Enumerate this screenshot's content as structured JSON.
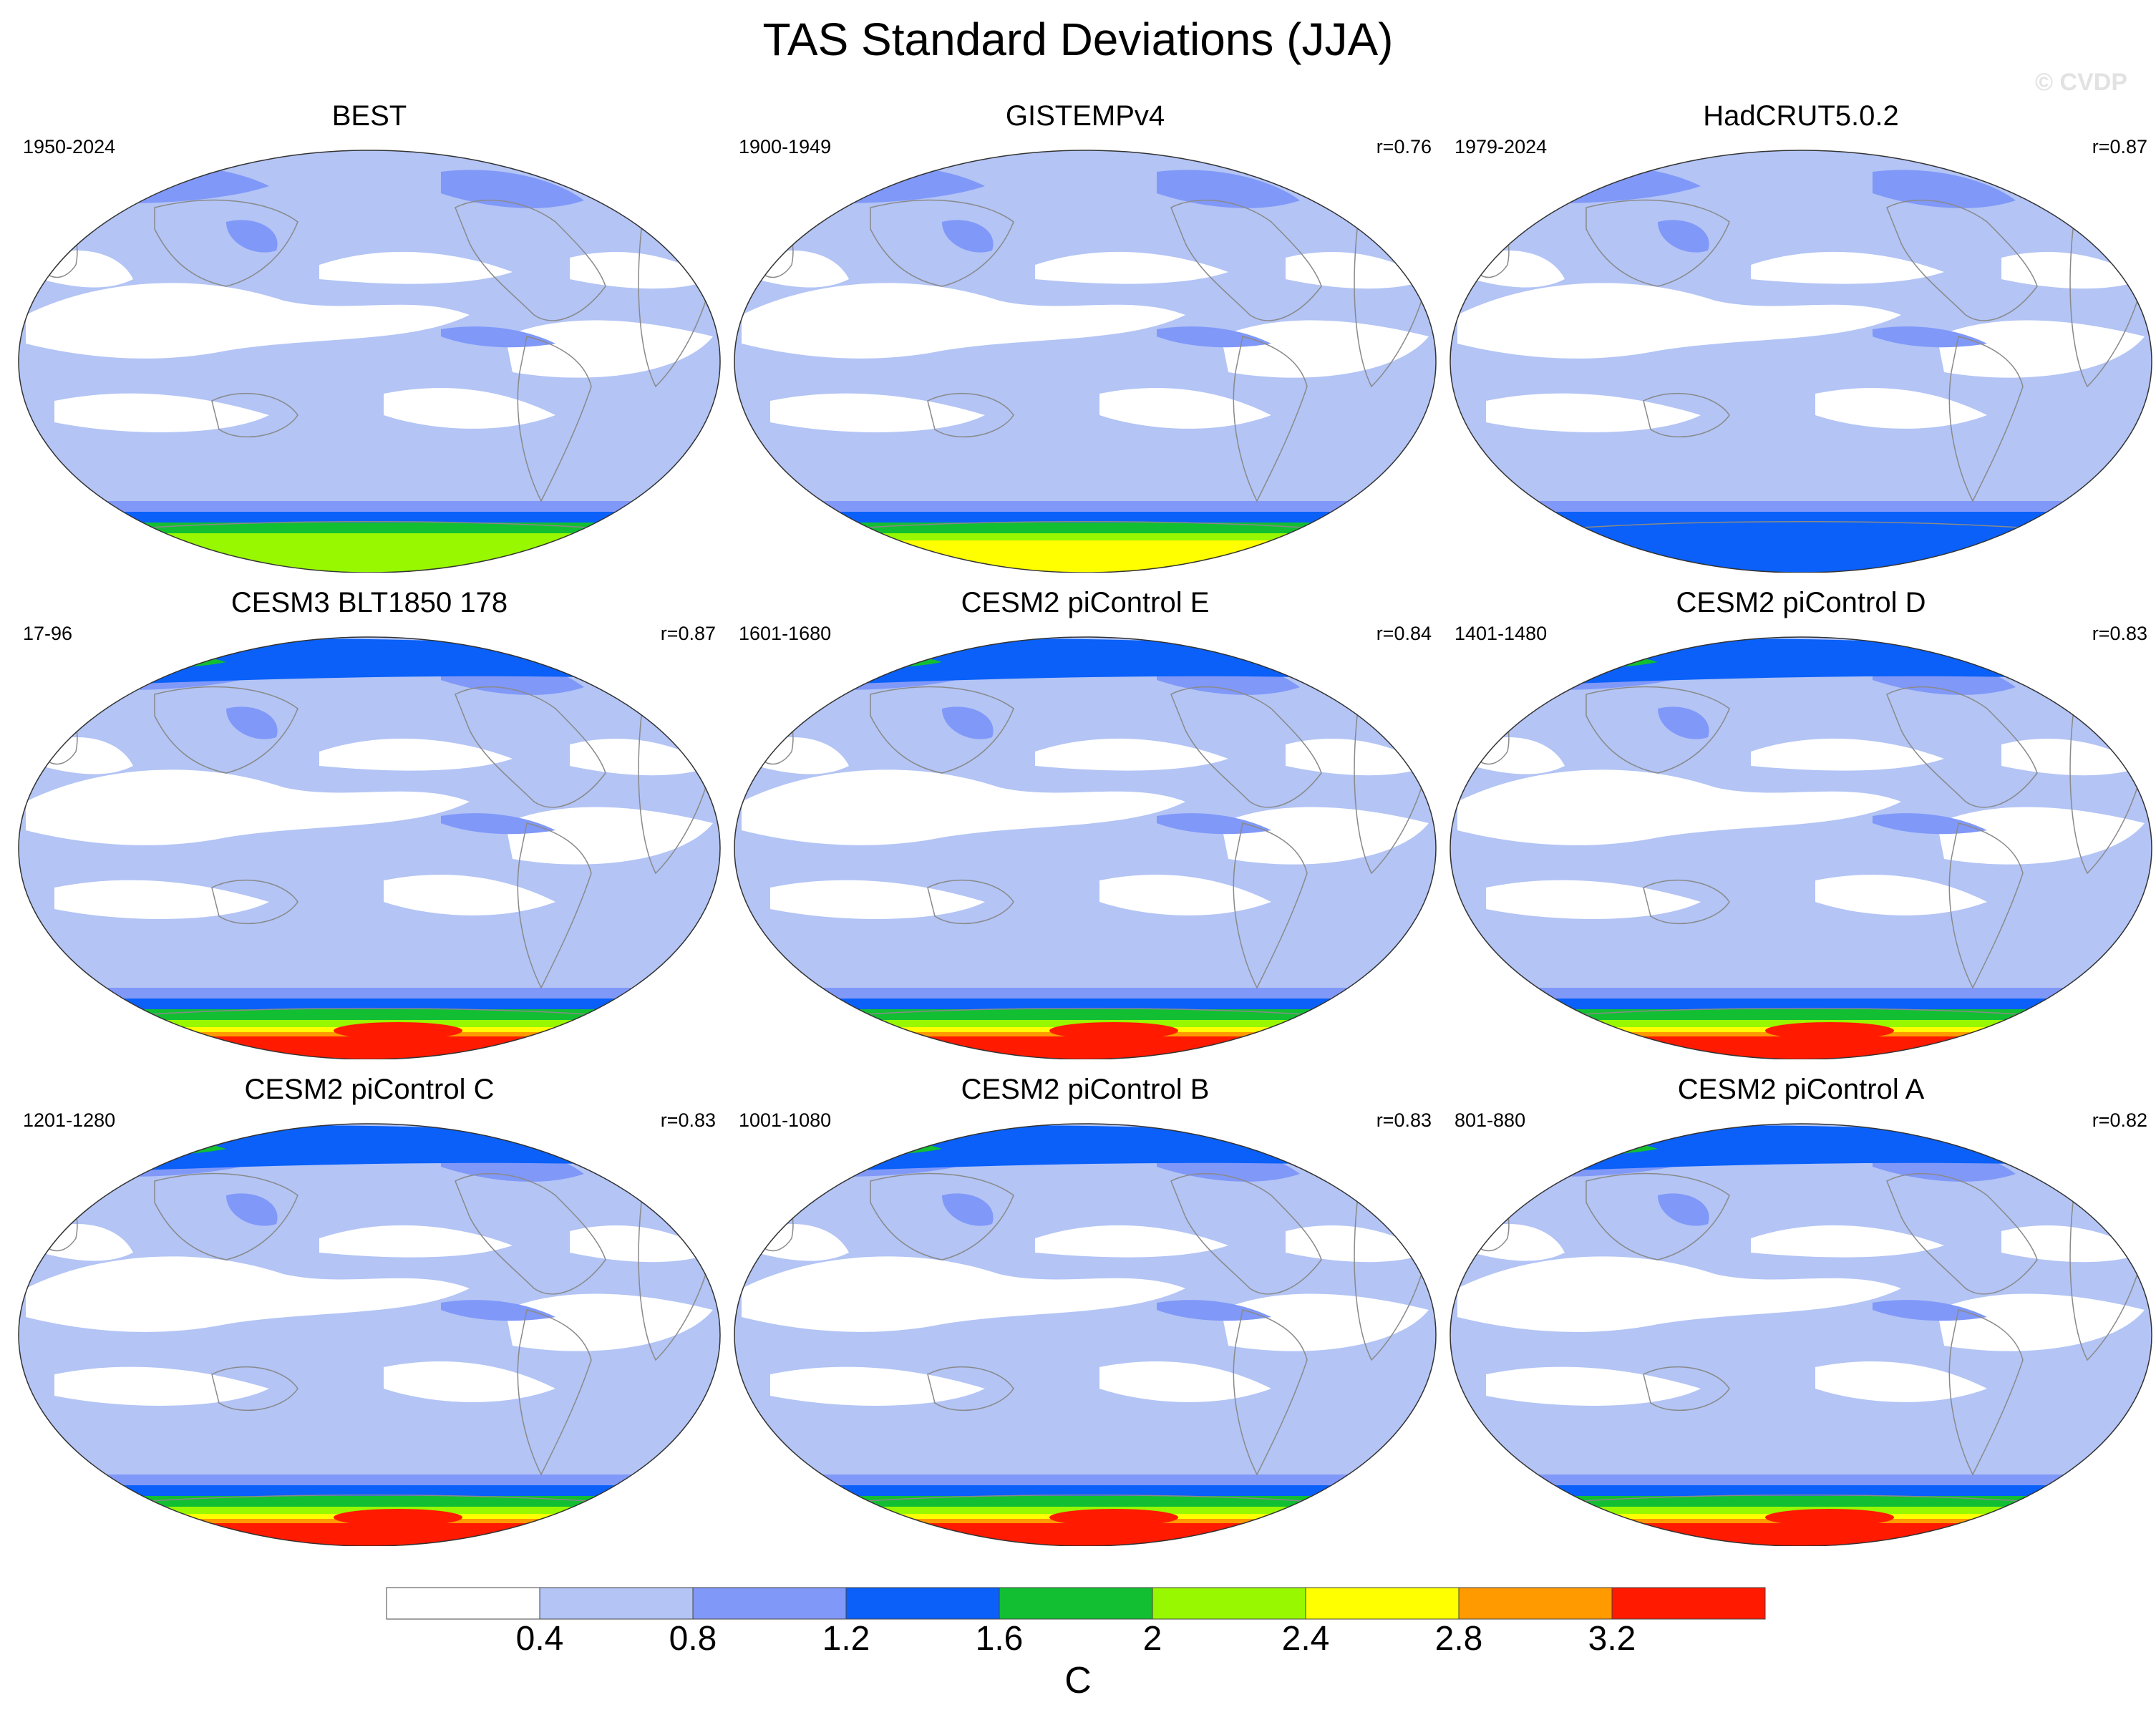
{
  "title": "TAS Standard Deviations (JJA)",
  "watermark": "© CVDP",
  "panels": [
    {
      "title": "BEST",
      "period": "1950-2024",
      "corr": "",
      "antarctic_max": 2.2,
      "arctic_max": 1.2
    },
    {
      "title": "GISTEMPv4",
      "period": "1900-1949",
      "corr": "r=0.76",
      "antarctic_max": 2.8,
      "arctic_max": 1.2
    },
    {
      "title": "HadCRUT5.0.2",
      "period": "1979-2024",
      "corr": "r=0.87",
      "antarctic_max": 1.6,
      "arctic_max": 1.2
    },
    {
      "title": "CESM3 BLT1850 178",
      "period": "17-96",
      "corr": "r=0.87",
      "antarctic_max": 3.6,
      "arctic_max": 2.0
    },
    {
      "title": "CESM2 piControl E",
      "period": "1601-1680",
      "corr": "r=0.84",
      "antarctic_max": 3.6,
      "arctic_max": 2.0
    },
    {
      "title": "CESM2 piControl D",
      "period": "1401-1480",
      "corr": "r=0.83",
      "antarctic_max": 3.6,
      "arctic_max": 2.0
    },
    {
      "title": "CESM2 piControl C",
      "period": "1201-1280",
      "corr": "r=0.83",
      "antarctic_max": 3.6,
      "arctic_max": 2.0
    },
    {
      "title": "CESM2 piControl B",
      "period": "1001-1080",
      "corr": "r=0.83",
      "antarctic_max": 3.6,
      "arctic_max": 2.0
    },
    {
      "title": "CESM2 piControl A",
      "period": "801-880",
      "corr": "r=0.82",
      "antarctic_max": 3.6,
      "arctic_max": 2.0
    }
  ],
  "colorbar": {
    "levels": [
      "0.4",
      "0.8",
      "1.2",
      "1.6",
      "2",
      "2.4",
      "2.8",
      "3.2"
    ],
    "colors": [
      "#ffffff",
      "#b3c4f5",
      "#8098f8",
      "#0a60f8",
      "#12bf32",
      "#98f800",
      "#ffff00",
      "#ff9a00",
      "#ff1a00"
    ],
    "units": "C"
  },
  "colors": {
    "land_outline": "#8a8a8a",
    "map_border": "#333333"
  }
}
